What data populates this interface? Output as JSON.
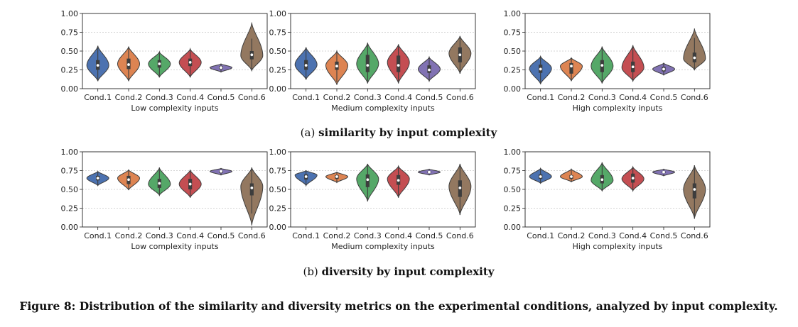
{
  "figure_caption": "Figure 8: Distribution of the similarity and diversity metrics on the experimental conditions, analyzed by input complexity.",
  "rows": [
    {
      "subcaption_label": "(a)",
      "subcaption_text": "similarity by input complexity"
    },
    {
      "subcaption_label": "(b)",
      "subcaption_text": "diversity by input complexity"
    }
  ],
  "colors": [
    "#4c72b0",
    "#dd8452",
    "#55a868",
    "#c44e52",
    "#8172b3",
    "#937860"
  ],
  "chart_data": [
    {
      "type": "violin",
      "row": 0,
      "col": 0,
      "xlabel": "Low complexity inputs",
      "ylim": [
        0,
        1
      ],
      "yticks": [
        "0.00",
        "0.25",
        "0.50",
        "0.75",
        "1.00"
      ],
      "grid": true,
      "categories": [
        "Cond.1",
        "Cond.2",
        "Cond.3",
        "Cond.4",
        "Cond.5",
        "Cond.6"
      ],
      "stats": [
        {
          "min": 0.1,
          "q1": 0.25,
          "median": 0.31,
          "q3": 0.38,
          "max": 0.57,
          "mode": 0.31,
          "width": 0.85
        },
        {
          "min": 0.1,
          "q1": 0.26,
          "median": 0.32,
          "q3": 0.4,
          "max": 0.56,
          "mode": 0.33,
          "width": 0.85
        },
        {
          "min": 0.15,
          "q1": 0.28,
          "median": 0.33,
          "q3": 0.38,
          "max": 0.49,
          "mode": 0.33,
          "width": 0.85
        },
        {
          "min": 0.15,
          "q1": 0.3,
          "median": 0.35,
          "q3": 0.4,
          "max": 0.53,
          "mode": 0.35,
          "width": 0.85
        },
        {
          "min": 0.22,
          "q1": 0.26,
          "median": 0.28,
          "q3": 0.3,
          "max": 0.33,
          "mode": 0.28,
          "width": 0.85
        },
        {
          "min": 0.24,
          "q1": 0.39,
          "median": 0.45,
          "q3": 0.5,
          "max": 0.88,
          "mode": 0.44,
          "width": 0.85
        }
      ]
    },
    {
      "type": "violin",
      "row": 0,
      "col": 1,
      "xlabel": "Medium complexity inputs",
      "ylim": [
        0,
        1
      ],
      "yticks": [
        "0.00",
        "0.25",
        "0.50",
        "0.75",
        "1.00"
      ],
      "grid": true,
      "categories": [
        "Cond.1",
        "Cond.2",
        "Cond.3",
        "Cond.4",
        "Cond.5",
        "Cond.6"
      ],
      "stats": [
        {
          "min": 0.12,
          "q1": 0.25,
          "median": 0.31,
          "q3": 0.38,
          "max": 0.55,
          "mode": 0.32,
          "width": 0.85
        },
        {
          "min": 0.05,
          "q1": 0.25,
          "median": 0.3,
          "q3": 0.36,
          "max": 0.5,
          "mode": 0.31,
          "width": 0.85
        },
        {
          "min": 0.07,
          "q1": 0.22,
          "median": 0.31,
          "q3": 0.45,
          "max": 0.61,
          "mode": 0.33,
          "width": 0.85
        },
        {
          "min": 0.07,
          "q1": 0.22,
          "median": 0.31,
          "q3": 0.44,
          "max": 0.59,
          "mode": 0.35,
          "width": 0.85
        },
        {
          "min": 0.1,
          "q1": 0.21,
          "median": 0.25,
          "q3": 0.31,
          "max": 0.42,
          "mode": 0.26,
          "width": 0.85
        },
        {
          "min": 0.2,
          "q1": 0.35,
          "median": 0.45,
          "q3": 0.55,
          "max": 0.7,
          "mode": 0.47,
          "width": 0.85
        }
      ]
    },
    {
      "type": "violin",
      "row": 0,
      "col": 2,
      "xlabel": "High complexity inputs",
      "ylim": [
        0,
        1
      ],
      "yticks": [
        "0.00",
        "0.25",
        "0.50",
        "0.75",
        "1.00"
      ],
      "grid": true,
      "categories": [
        "Cond.1",
        "Cond.2",
        "Cond.3",
        "Cond.4",
        "Cond.5",
        "Cond.6"
      ],
      "stats": [
        {
          "min": 0.06,
          "q1": 0.21,
          "median": 0.26,
          "q3": 0.32,
          "max": 0.43,
          "mode": 0.27,
          "width": 0.85
        },
        {
          "min": 0.1,
          "q1": 0.2,
          "median": 0.3,
          "q3": 0.34,
          "max": 0.41,
          "mode": 0.3,
          "width": 0.85
        },
        {
          "min": 0.07,
          "q1": 0.22,
          "median": 0.31,
          "q3": 0.38,
          "max": 0.56,
          "mode": 0.3,
          "width": 0.85
        },
        {
          "min": 0.1,
          "q1": 0.22,
          "median": 0.29,
          "q3": 0.36,
          "max": 0.58,
          "mode": 0.28,
          "width": 0.85
        },
        {
          "min": 0.18,
          "q1": 0.23,
          "median": 0.26,
          "q3": 0.29,
          "max": 0.34,
          "mode": 0.26,
          "width": 0.85
        },
        {
          "min": 0.25,
          "q1": 0.35,
          "median": 0.41,
          "q3": 0.48,
          "max": 0.8,
          "mode": 0.4,
          "width": 0.85
        }
      ]
    },
    {
      "type": "violin",
      "row": 1,
      "col": 0,
      "xlabel": "Low complexity inputs",
      "ylim": [
        0,
        1
      ],
      "yticks": [
        "0.00",
        "0.25",
        "0.50",
        "0.75",
        "1.00"
      ],
      "grid": true,
      "categories": [
        "Cond.1",
        "Cond.2",
        "Cond.3",
        "Cond.4",
        "Cond.5",
        "Cond.6"
      ],
      "stats": [
        {
          "min": 0.55,
          "q1": 0.62,
          "median": 0.65,
          "q3": 0.68,
          "max": 0.74,
          "mode": 0.65,
          "width": 0.85
        },
        {
          "min": 0.49,
          "q1": 0.57,
          "median": 0.63,
          "q3": 0.68,
          "max": 0.76,
          "mode": 0.65,
          "width": 0.85
        },
        {
          "min": 0.42,
          "q1": 0.52,
          "median": 0.58,
          "q3": 0.64,
          "max": 0.79,
          "mode": 0.57,
          "width": 0.85
        },
        {
          "min": 0.39,
          "q1": 0.5,
          "median": 0.57,
          "q3": 0.64,
          "max": 0.76,
          "mode": 0.57,
          "width": 0.85
        },
        {
          "min": 0.69,
          "q1": 0.72,
          "median": 0.74,
          "q3": 0.75,
          "max": 0.78,
          "mode": 0.74,
          "width": 0.85
        },
        {
          "min": 0.02,
          "q1": 0.42,
          "median": 0.52,
          "q3": 0.58,
          "max": 0.79,
          "mode": 0.54,
          "width": 0.85
        }
      ]
    },
    {
      "type": "violin",
      "row": 1,
      "col": 1,
      "xlabel": "Medium complexity inputs",
      "ylim": [
        0,
        1
      ],
      "yticks": [
        "0.00",
        "0.25",
        "0.50",
        "0.75",
        "1.00"
      ],
      "grid": true,
      "categories": [
        "Cond.1",
        "Cond.2",
        "Cond.3",
        "Cond.4",
        "Cond.5",
        "Cond.6"
      ],
      "stats": [
        {
          "min": 0.55,
          "q1": 0.63,
          "median": 0.67,
          "q3": 0.7,
          "max": 0.75,
          "mode": 0.69,
          "width": 0.85
        },
        {
          "min": 0.59,
          "q1": 0.64,
          "median": 0.67,
          "q3": 0.69,
          "max": 0.73,
          "mode": 0.67,
          "width": 0.85
        },
        {
          "min": 0.34,
          "q1": 0.53,
          "median": 0.63,
          "q3": 0.7,
          "max": 0.84,
          "mode": 0.64,
          "width": 0.85
        },
        {
          "min": 0.39,
          "q1": 0.56,
          "median": 0.62,
          "q3": 0.69,
          "max": 0.81,
          "mode": 0.64,
          "width": 0.85
        },
        {
          "min": 0.69,
          "q1": 0.72,
          "median": 0.73,
          "q3": 0.74,
          "max": 0.77,
          "mode": 0.73,
          "width": 0.85
        },
        {
          "min": 0.16,
          "q1": 0.4,
          "median": 0.52,
          "q3": 0.62,
          "max": 0.84,
          "mode": 0.54,
          "width": 0.85
        }
      ]
    },
    {
      "type": "violin",
      "row": 1,
      "col": 2,
      "xlabel": "High complexity inputs",
      "ylim": [
        0,
        1
      ],
      "yticks": [
        "0.00",
        "0.25",
        "0.50",
        "0.75",
        "1.00"
      ],
      "grid": true,
      "categories": [
        "Cond.1",
        "Cond.2",
        "Cond.3",
        "Cond.4",
        "Cond.5",
        "Cond.6"
      ],
      "stats": [
        {
          "min": 0.58,
          "q1": 0.64,
          "median": 0.67,
          "q3": 0.7,
          "max": 0.78,
          "mode": 0.67,
          "width": 0.85
        },
        {
          "min": 0.6,
          "q1": 0.64,
          "median": 0.67,
          "q3": 0.69,
          "max": 0.77,
          "mode": 0.67,
          "width": 0.85
        },
        {
          "min": 0.48,
          "q1": 0.58,
          "median": 0.63,
          "q3": 0.69,
          "max": 0.86,
          "mode": 0.62,
          "width": 0.85
        },
        {
          "min": 0.48,
          "q1": 0.59,
          "median": 0.65,
          "q3": 0.71,
          "max": 0.8,
          "mode": 0.64,
          "width": 0.85
        },
        {
          "min": 0.68,
          "q1": 0.72,
          "median": 0.73,
          "q3": 0.74,
          "max": 0.77,
          "mode": 0.73,
          "width": 0.85
        },
        {
          "min": 0.11,
          "q1": 0.38,
          "median": 0.5,
          "q3": 0.58,
          "max": 0.82,
          "mode": 0.5,
          "width": 0.85
        }
      ]
    }
  ]
}
